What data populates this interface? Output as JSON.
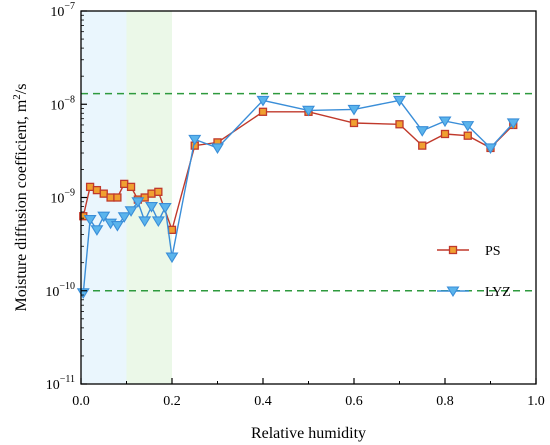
{
  "chart_data": {
    "type": "line",
    "xlabel": "Relative humidity",
    "ylabel": "Moisture diffusion coefficient, m²/s",
    "ylabel_main": "Moisture diffusion coefficient, m",
    "ylabel_sup": "2",
    "ylabel_tail": "/s",
    "xlim": [
      0.0,
      1.0
    ],
    "ylim": [
      1e-11,
      1e-07
    ],
    "yscale": "log",
    "x_ticks": [
      0.0,
      0.2,
      0.4,
      0.6,
      0.8,
      1.0
    ],
    "x_tick_labels": [
      "0.0",
      "0.2",
      "0.4",
      "0.6",
      "0.8",
      "1.0"
    ],
    "y_ticks": [
      {
        "value": 1e-11,
        "base": "10",
        "exp": "−11"
      },
      {
        "value": 1e-10,
        "base": "10",
        "exp": "−10"
      },
      {
        "value": 1e-09,
        "base": "10",
        "exp": "−9"
      },
      {
        "value": 1e-08,
        "base": "10",
        "exp": "−8"
      },
      {
        "value": 1e-07,
        "base": "10",
        "exp": "−7"
      }
    ],
    "bands": [
      {
        "x0": 0.0,
        "x1": 0.1,
        "color": "#eaf6fd"
      },
      {
        "x0": 0.1,
        "x1": 0.2,
        "color": "#ebf8e8"
      }
    ],
    "ref_lines": [
      1.3e-08,
      1e-10
    ],
    "ref_line_color": "#2e9a3e",
    "legend_position": "right",
    "series": [
      {
        "name": "PS",
        "color": "#c0392b",
        "marker": "square",
        "marker_fill": "#f0a030",
        "points": [
          [
            0.005,
            6.3e-10
          ],
          [
            0.02,
            1.3e-09
          ],
          [
            0.035,
            1.2e-09
          ],
          [
            0.05,
            1.1e-09
          ],
          [
            0.065,
            1e-09
          ],
          [
            0.08,
            1e-09
          ],
          [
            0.095,
            1.4e-09
          ],
          [
            0.11,
            1.3e-09
          ],
          [
            0.125,
            9.5e-10
          ],
          [
            0.14,
            1e-09
          ],
          [
            0.155,
            1.1e-09
          ],
          [
            0.17,
            1.15e-09
          ],
          [
            0.2,
            4.5e-10
          ],
          [
            0.25,
            3.6e-09
          ],
          [
            0.3,
            3.9e-09
          ],
          [
            0.4,
            8.3e-09
          ],
          [
            0.5,
            8.3e-09
          ],
          [
            0.6,
            6.3e-09
          ],
          [
            0.7,
            6.1e-09
          ],
          [
            0.75,
            3.6e-09
          ],
          [
            0.8,
            4.8e-09
          ],
          [
            0.85,
            4.6e-09
          ],
          [
            0.9,
            3.4e-09
          ],
          [
            0.95,
            6e-09
          ]
        ]
      },
      {
        "name": "LYZ",
        "color": "#3a8ed8",
        "marker": "triangle-down",
        "marker_fill": "#5ab4ec",
        "points": [
          [
            0.005,
            9.5e-11
          ],
          [
            0.02,
            5.8e-10
          ],
          [
            0.035,
            4.5e-10
          ],
          [
            0.05,
            6.3e-10
          ],
          [
            0.065,
            5.3e-10
          ],
          [
            0.08,
            5e-10
          ],
          [
            0.095,
            6.2e-10
          ],
          [
            0.11,
            7.2e-10
          ],
          [
            0.125,
            9e-10
          ],
          [
            0.14,
            5.6e-10
          ],
          [
            0.155,
            8e-10
          ],
          [
            0.17,
            5.6e-10
          ],
          [
            0.185,
            7.8e-10
          ],
          [
            0.2,
            2.3e-10
          ],
          [
            0.25,
            4.2e-09
          ],
          [
            0.3,
            3.4e-09
          ],
          [
            0.4,
            1.1e-08
          ],
          [
            0.5,
            8.6e-09
          ],
          [
            0.6,
            8.8e-09
          ],
          [
            0.7,
            1.1e-08
          ],
          [
            0.75,
            5.2e-09
          ],
          [
            0.8,
            6.6e-09
          ],
          [
            0.85,
            5.9e-09
          ],
          [
            0.9,
            3.4e-09
          ],
          [
            0.95,
            6.3e-09
          ]
        ]
      }
    ]
  }
}
